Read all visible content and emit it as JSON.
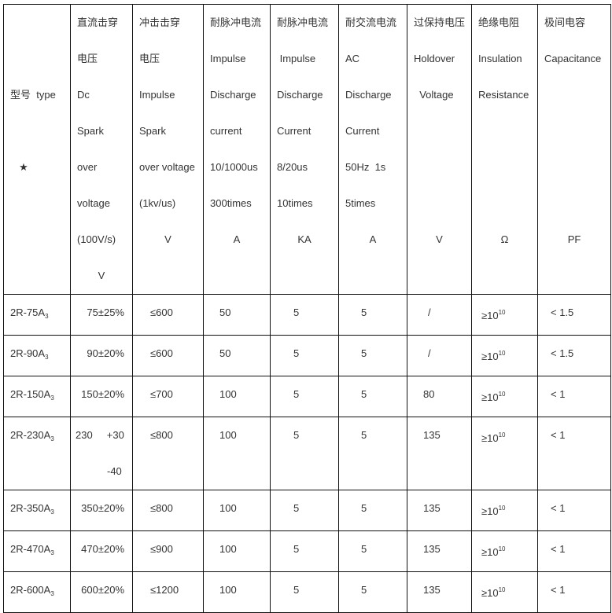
{
  "header": {
    "type_col": [
      "",
      "",
      "型号  type",
      "",
      "★"
    ],
    "columns": [
      {
        "lines": [
          "直流击穿",
          "电压",
          "Dc",
          "Spark",
          "over",
          "voltage",
          "(100V/s)"
        ],
        "unit": "V"
      },
      {
        "lines": [
          "冲击击穿",
          "电压",
          "Impulse",
          "Spark",
          "over voltage",
          "(1kv/us)"
        ],
        "unit": "V"
      },
      {
        "lines": [
          "耐脉冲电流",
          "Impulse",
          "Discharge",
          "current",
          "10/1000us",
          "300times"
        ],
        "unit": "A"
      },
      {
        "lines": [
          "耐脉冲电流",
          " Impulse",
          "Discharge",
          "Current",
          "8/20us",
          "10times"
        ],
        "unit": "KA"
      },
      {
        "lines": [
          "耐交流电流",
          "AC",
          "Discharge",
          "Current",
          "50Hz  1s",
          "5times"
        ],
        "unit": "A"
      },
      {
        "lines": [
          "过保持电压",
          "Holdover",
          "  Voltage"
        ],
        "unit": "V"
      },
      {
        "lines": [
          "绝缘电阻",
          "Insulation",
          "Resistance"
        ],
        "unit": "Ω"
      },
      {
        "lines": [
          "极间电容",
          "Capacitance"
        ],
        "unit": "PF"
      }
    ]
  },
  "rows": [
    {
      "model": "2R-75A",
      "sub": "3",
      "dc": "75±25%",
      "imp": "≤600",
      "i1": "50",
      "i2": "5",
      "ac": "5",
      "hold": "/",
      "ins": "≥10",
      "ins_exp": "10",
      "cap": "< 1.5"
    },
    {
      "model": "2R-90A",
      "sub": "3",
      "dc": "90±20%",
      "imp": "≤600",
      "i1": "50",
      "i2": "5",
      "ac": "5",
      "hold": "/",
      "ins": "≥10",
      "ins_exp": "10",
      "cap": "< 1.5"
    },
    {
      "model": "2R-150A",
      "sub": "3",
      "dc": "150±20%",
      "imp": "≤700",
      "i1": "100",
      "i2": "5",
      "ac": "5",
      "hold": "80",
      "ins": "≥10",
      "ins_exp": "10",
      "cap": "< 1"
    },
    {
      "model": "2R-230A",
      "sub": "3",
      "dc": "230     +30",
      "dc2": "-40",
      "imp": "≤800",
      "i1": "100",
      "i2": "5",
      "ac": "5",
      "hold": "135",
      "ins": "≥10",
      "ins_exp": "10",
      "cap": "< 1"
    },
    {
      "model": "2R-350A",
      "sub": "3",
      "dc": "350±20%",
      "imp": "≤800",
      "i1": "100",
      "i2": "5",
      "ac": "5",
      "hold": "135",
      "ins": "≥10",
      "ins_exp": "10",
      "cap": "< 1"
    },
    {
      "model": "2R-470A",
      "sub": "3",
      "dc": "470±20%",
      "imp": "≤900",
      "i1": "100",
      "i2": "5",
      "ac": "5",
      "hold": "135",
      "ins": "≥10",
      "ins_exp": "10",
      "cap": "< 1"
    },
    {
      "model": "2R-600A",
      "sub": "3",
      "dc": "600±20%",
      "imp": "≤1200",
      "i1": "100",
      "i2": "5",
      "ac": "5",
      "hold": "135",
      "ins": "≥10",
      "ins_exp": "10",
      "cap": "< 1"
    }
  ]
}
